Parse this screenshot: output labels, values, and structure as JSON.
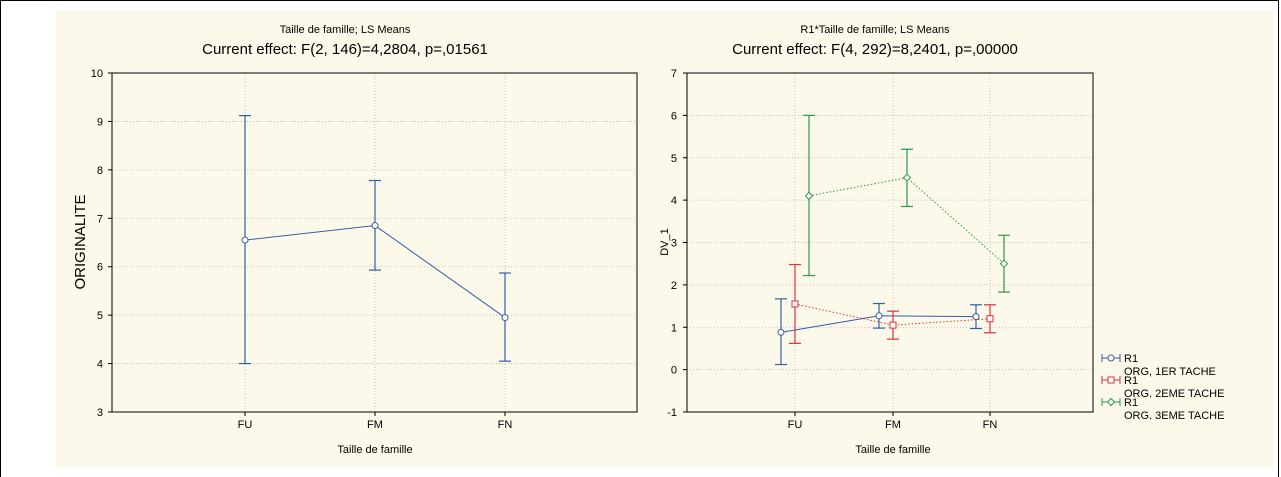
{
  "chart_data": [
    {
      "type": "line",
      "title": "Taille de famille; LS Means",
      "subtitle": "Current effect: F(2, 146)=4,2804, p=,01561",
      "xlabel": "Taille de famille",
      "ylabel": "ORIGINALITE",
      "categories": [
        "FU",
        "FM",
        "FN"
      ],
      "ylim": [
        3,
        10
      ],
      "yticks": [
        3,
        4,
        5,
        6,
        7,
        8,
        9,
        10
      ],
      "grid": true,
      "series": [
        {
          "color": "#3060a8",
          "values": [
            6.55,
            6.85,
            4.95
          ],
          "lower": [
            4.0,
            5.93,
            4.05
          ],
          "upper": [
            9.12,
            7.78,
            5.87
          ]
        }
      ]
    },
    {
      "type": "line",
      "title": "R1*Taille de famille; LS Means",
      "subtitle": "Current effect: F(4, 292)=8,2401, p=,00000",
      "xlabel": "Taille de famille",
      "ylabel": "DV_1",
      "categories": [
        "FU",
        "FM",
        "FN"
      ],
      "ylim": [
        -1,
        7
      ],
      "yticks": [
        -1,
        0,
        1,
        2,
        3,
        4,
        5,
        6,
        7
      ],
      "grid": true,
      "legend_position": "right",
      "series": [
        {
          "name": "R1\nORG, 1ER TACHE",
          "legend_line1": "R1",
          "legend_line2": "ORG, 1ER TACHE",
          "color": "#3060a8",
          "marker": "circle",
          "dash": "solid",
          "values": [
            0.88,
            1.27,
            1.25
          ],
          "lower": [
            0.12,
            0.98,
            0.97
          ],
          "upper": [
            1.67,
            1.56,
            1.53
          ]
        },
        {
          "name": "R1\nORG. 2EME TACHE",
          "legend_line1": "R1",
          "legend_line2": "ORG. 2EME TACHE",
          "color": "#e0303a",
          "marker": "square",
          "dash": "dotted",
          "values": [
            1.55,
            1.05,
            1.2
          ],
          "lower": [
            0.62,
            0.72,
            0.87
          ],
          "upper": [
            2.48,
            1.38,
            1.53
          ]
        },
        {
          "name": "R1\nORG. 3EME TACHE",
          "legend_line1": "R1",
          "legend_line2": "ORG. 3EME TACHE",
          "color": "#2a9a48",
          "marker": "diamond",
          "dash": "dotted",
          "values": [
            4.1,
            4.53,
            2.5
          ],
          "lower": [
            2.22,
            3.85,
            1.83
          ],
          "upper": [
            6.0,
            5.2,
            3.17
          ]
        }
      ]
    }
  ]
}
